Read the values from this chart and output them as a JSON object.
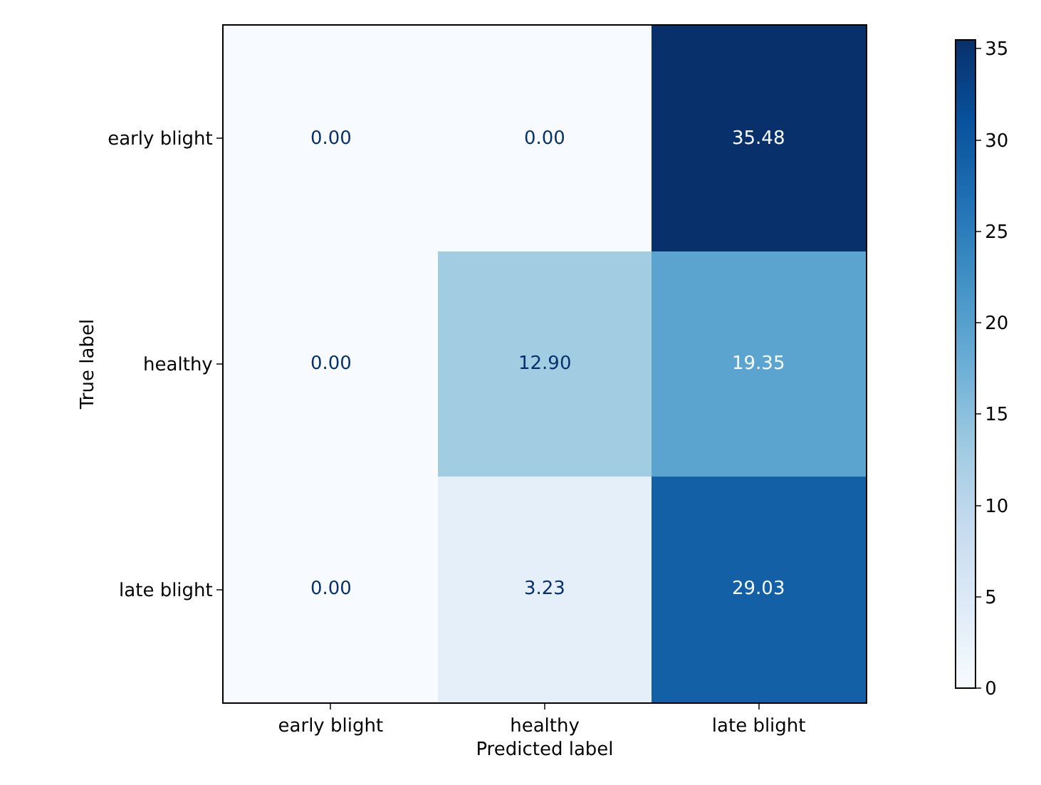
{
  "chart_data": {
    "type": "heatmap",
    "xlabel": "Predicted label",
    "ylabel": "True label",
    "categories": [
      "early blight",
      "healthy",
      "late blight"
    ],
    "y_categories": [
      "early blight",
      "healthy",
      "late blight"
    ],
    "cells": [
      [
        0,
        0,
        35.48
      ],
      [
        0,
        12.9,
        19.35
      ],
      [
        0,
        3.23,
        29.03
      ]
    ],
    "cell_labels": [
      [
        "0.00",
        "0.00",
        "35.48"
      ],
      [
        "0.00",
        "12.90",
        "19.35"
      ],
      [
        "0.00",
        "3.23",
        "29.03"
      ]
    ],
    "clim": [
      0,
      35.48
    ],
    "cticks": [
      0,
      5,
      10,
      15,
      20,
      25,
      30,
      35
    ]
  }
}
